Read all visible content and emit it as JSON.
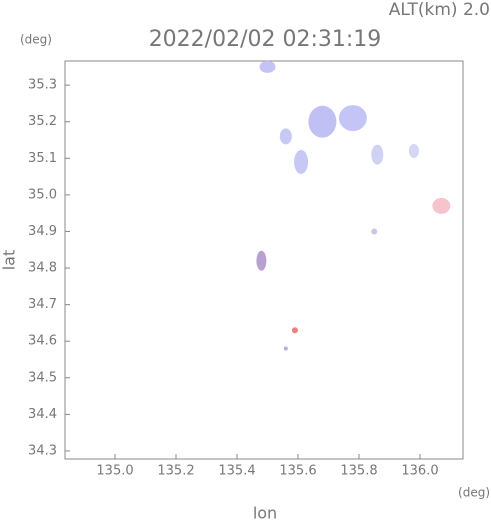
{
  "chart_data": {
    "type": "scatter",
    "title": "2022/02/02 02:31:19",
    "annotation": "ALT(km) 2.0",
    "y_unit": "(deg)",
    "x_unit": "(deg)",
    "xlabel": "lon",
    "ylabel": "lat",
    "xlim": [
      134.836,
      136.141
    ],
    "ylim": [
      34.278,
      35.366
    ],
    "xticks": [
      {
        "value": 135.0,
        "label": "135.0"
      },
      135.2,
      135.4,
      135.6,
      135.8,
      {
        "value": 136.0,
        "label": "136.0"
      }
    ],
    "yticks": [
      34.3,
      34.4,
      34.5,
      34.6,
      34.7,
      34.8,
      34.9,
      {
        "value": 35.0,
        "label": "35.0"
      },
      35.1,
      35.2,
      35.3
    ],
    "x": [
      135.5,
      135.68,
      135.78,
      135.56,
      135.61,
      135.86,
      135.98,
      136.07,
      135.48,
      135.85,
      135.59,
      135.56
    ],
    "values": [
      35.35,
      35.2,
      35.21,
      35.16,
      35.09,
      35.11,
      35.12,
      34.97,
      34.82,
      34.9,
      34.63,
      34.58
    ],
    "colors": [
      "#c4c4f4",
      "#c0c0f4",
      "#c4c4f6",
      "#c8c8f4",
      "#c8c8f4",
      "#cfd2f2",
      "#d4d6f4",
      "#f6c4cc",
      "#b8a0d0",
      "#c8c8e4",
      "#f08080",
      "#b0b0d0"
    ]
  }
}
